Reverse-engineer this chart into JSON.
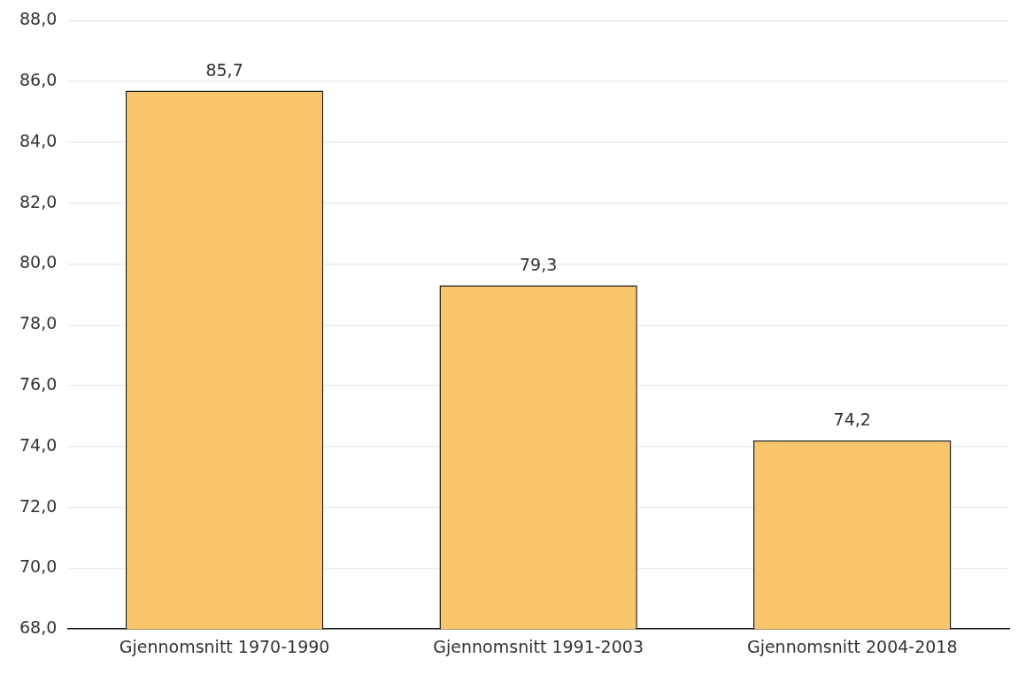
{
  "chart_data": {
    "type": "bar",
    "categories": [
      "Gjennomsnitt 1970-1990",
      "Gjennomsnitt 1991-2003",
      "Gjennomsnitt 2004-2018"
    ],
    "values": [
      85.7,
      79.3,
      74.2
    ],
    "value_labels": [
      "85,7",
      "79,3",
      "74,2"
    ],
    "color": "#f9c66b",
    "ylim": [
      68,
      88
    ],
    "yticks": [
      {
        "value": 68,
        "label": "68,0"
      },
      {
        "value": 70,
        "label": "70,0"
      },
      {
        "value": 72,
        "label": "72,0"
      },
      {
        "value": 74,
        "label": "74,0"
      },
      {
        "value": 76,
        "label": "76,0"
      },
      {
        "value": 78,
        "label": "78,0"
      },
      {
        "value": 80,
        "label": "80,0"
      },
      {
        "value": 82,
        "label": "82,0"
      },
      {
        "value": 84,
        "label": "84,0"
      },
      {
        "value": 86,
        "label": "86,0"
      },
      {
        "value": 88,
        "label": "88,0"
      }
    ],
    "grid": "y"
  }
}
